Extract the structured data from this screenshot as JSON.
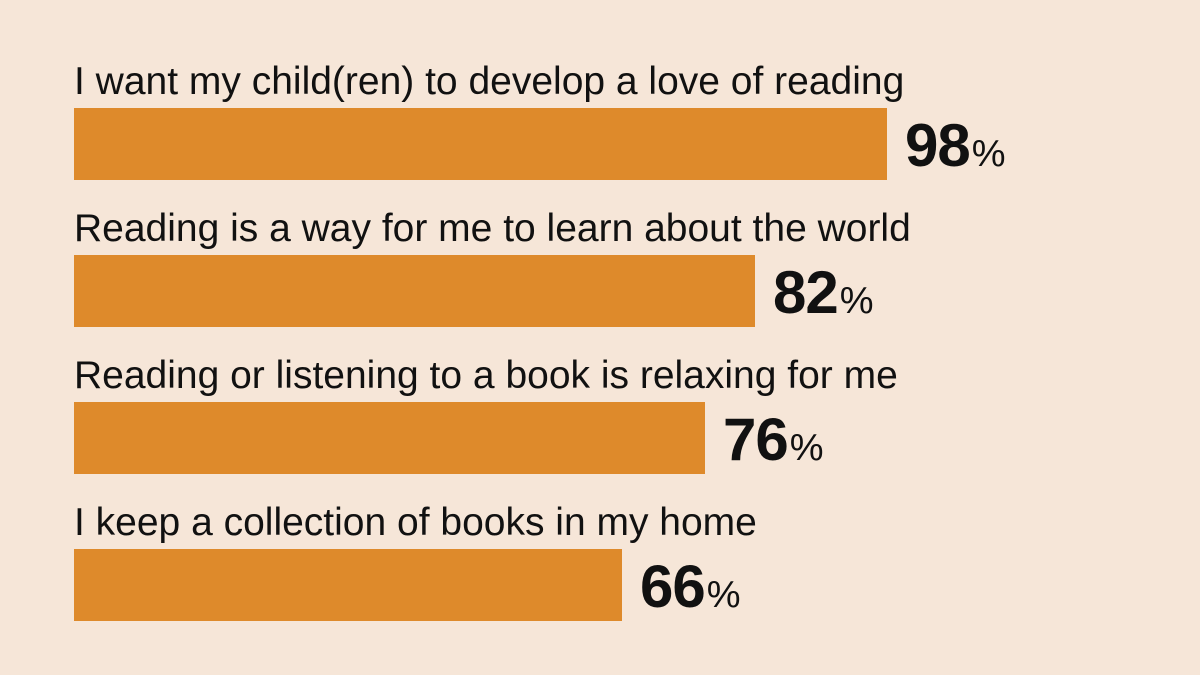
{
  "chart_data": {
    "type": "bar",
    "orientation": "horizontal",
    "categories": [
      "I want my child(ren) to develop a love of reading",
      "Reading is a way for me to learn about the world",
      "Reading or listening to a book is relaxing for me",
      "I keep a collection of books in my home"
    ],
    "values": [
      98,
      82,
      76,
      66
    ],
    "value_suffix": "%",
    "xlim": [
      0,
      100
    ],
    "grid": false,
    "legend": "none",
    "bar_color": "#de8a2b",
    "background_color": "#f6e6d8",
    "text_color": "#111111"
  }
}
